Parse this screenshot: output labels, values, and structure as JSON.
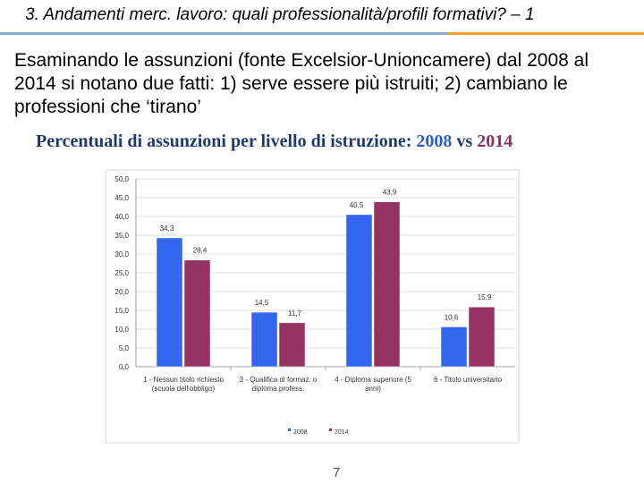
{
  "slide": {
    "title": "3. Andamenti merc. lavoro: quali professionalità/profili formativi? – 1",
    "intro": "Esaminando le assunzioni (fonte Excelsior-Unioncamere) dal 2008 al 2014 si notano due fatti: 1) serve essere più istruiti;  2) cambiano le professioni che ‘tirano’",
    "chart_heading_prefix": "Percentuali di assunzioni per livello di istruzione:",
    "chart_heading_2008": "2008",
    "chart_heading_vs": "vs",
    "chart_heading_2014": "2014",
    "page_number": "7"
  },
  "chart_data": {
    "type": "bar",
    "categories": [
      [
        "1 - Nessun titolo richiesto",
        "(scuola dell'obbligo)"
      ],
      [
        "3 - Qualifica di formaz. o",
        "diploma profess."
      ],
      [
        "4 - Diploma superiore (5",
        "anni)"
      ],
      [
        "6 - Titolo universitario"
      ]
    ],
    "series": [
      {
        "name": "2008",
        "values": [
          34.3,
          14.5,
          40.5,
          10.6
        ],
        "labels": [
          "34,3",
          "14,5",
          "40,5",
          "10,6"
        ],
        "color": "#3366ee"
      },
      {
        "name": "2014",
        "values": [
          28.4,
          11.7,
          43.9,
          15.9
        ],
        "labels": [
          "28,4",
          "11,7",
          "43,9",
          "15,9"
        ],
        "color": "#953462"
      }
    ],
    "y_ticks": [
      "0,0",
      "5,0",
      "10,0",
      "15,0",
      "20,0",
      "25,0",
      "30,0",
      "35,0",
      "40,0",
      "45,0",
      "50,0"
    ],
    "ylim": [
      0,
      50
    ],
    "grid": true,
    "legend_position": "bottom"
  }
}
